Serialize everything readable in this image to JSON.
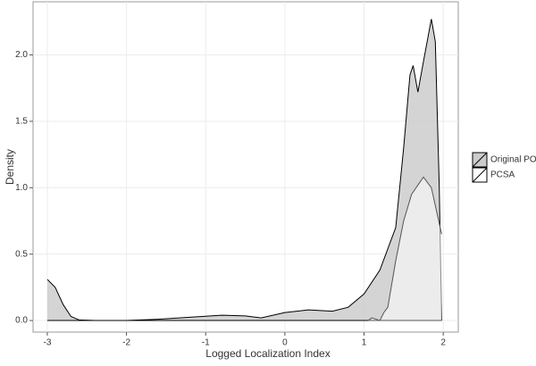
{
  "chart_data": {
    "type": "area",
    "x_label": "Logged Localization Index",
    "y_label": "Density",
    "xlim": [
      -3.18,
      2.19
    ],
    "ylim": [
      -0.087,
      2.4
    ],
    "xticks": [
      -3,
      -2,
      -1,
      0,
      1,
      2
    ],
    "yticks": [
      {
        "value": 0,
        "label": "0.0"
      },
      {
        "value": 0.5,
        "label": "0.5"
      },
      {
        "value": 1,
        "label": "1.0"
      },
      {
        "value": 1.5,
        "label": "1.5"
      },
      {
        "value": 2,
        "label": "2.0"
      }
    ],
    "grid": true,
    "legend": "right",
    "series": [
      {
        "name": "Original POA",
        "color": "#cccccc",
        "outline": "#000000",
        "x": [
          -3,
          -2.9,
          -2.8,
          -2.7,
          -2.6,
          -2.4,
          -2,
          -1.6,
          -1.2,
          -0.8,
          -0.5,
          -0.3,
          0,
          0.3,
          0.6,
          0.8,
          1.0,
          1.2,
          1.4,
          1.5,
          1.58,
          1.62,
          1.68,
          1.75,
          1.85,
          1.9,
          1.95,
          1.98
        ],
        "values": [
          0.31,
          0.25,
          0.12,
          0.03,
          0.005,
          0,
          0,
          0.01,
          0.025,
          0.04,
          0.035,
          0.02,
          0.06,
          0.08,
          0.07,
          0.1,
          0.2,
          0.38,
          0.7,
          1.3,
          1.85,
          1.92,
          1.72,
          1.95,
          2.27,
          2.1,
          1.0,
          0
        ]
      },
      {
        "name": "PCSA",
        "color": "#ffffff",
        "outline": "#555555",
        "x": [
          1.05,
          1.1,
          1.15,
          1.2,
          1.25,
          1.3,
          1.4,
          1.5,
          1.6,
          1.75,
          1.85,
          1.98
        ],
        "values": [
          0,
          0.02,
          0.01,
          0,
          0.06,
          0.1,
          0.45,
          0.75,
          0.95,
          1.08,
          1.0,
          0.65
        ]
      }
    ]
  }
}
